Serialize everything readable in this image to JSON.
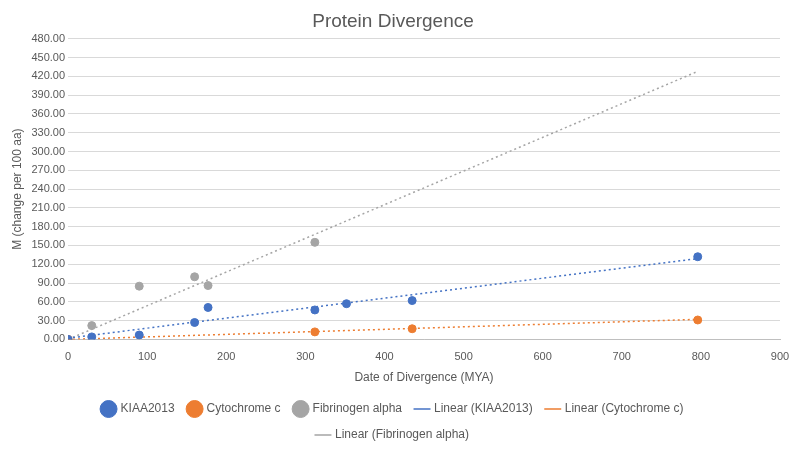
{
  "chart_data": {
    "type": "scatter",
    "title": "Protein Divergence",
    "x_label": "Date of Divergence (MYA)",
    "y_label": "M (change per 100 aa)",
    "xlim": [
      0,
      900
    ],
    "xticks": [
      0,
      100,
      200,
      300,
      400,
      500,
      600,
      700,
      800,
      900
    ],
    "ylim": [
      0,
      480
    ],
    "yticks": [
      {
        "value": 0,
        "label": "0.00"
      },
      {
        "value": 30,
        "label": "30.00"
      },
      {
        "value": 60,
        "label": "60.00"
      },
      {
        "value": 90,
        "label": "90.00"
      },
      {
        "value": 120,
        "label": "120.00"
      },
      {
        "value": 150,
        "label": "150.00"
      },
      {
        "value": 180,
        "label": "180.00"
      },
      {
        "value": 210,
        "label": "210.00"
      },
      {
        "value": 240,
        "label": "240.00"
      },
      {
        "value": 270,
        "label": "270.00"
      },
      {
        "value": 300,
        "label": "300.00"
      },
      {
        "value": 330,
        "label": "330.00"
      },
      {
        "value": 360,
        "label": "360.00"
      },
      {
        "value": 390,
        "label": "390.00"
      },
      {
        "value": 420,
        "label": "420.00"
      },
      {
        "value": 450,
        "label": "450.00"
      },
      {
        "value": 480,
        "label": "480.00"
      }
    ],
    "grid": true,
    "legend": "bottom",
    "series": [
      {
        "name": "KIAA2013",
        "color": "#4472c4",
        "type": "scatter",
        "marker": "circle",
        "x": [
          0,
          30,
          90,
          160,
          177,
          312,
          352,
          435,
          796
        ],
        "values": [
          0,
          4,
          7,
          27,
          51,
          47,
          57,
          62,
          132
        ]
      },
      {
        "name": "Cytochrome c",
        "color": "#ed7d31",
        "type": "scatter",
        "marker": "circle",
        "x": [
          0,
          312,
          435,
          796
        ],
        "values": [
          0,
          12,
          17,
          31
        ]
      },
      {
        "name": "Fibrinogen alpha",
        "color": "#a5a5a5",
        "type": "scatter",
        "marker": "circle",
        "x": [
          0,
          30,
          90,
          160,
          177,
          312
        ],
        "values": [
          0,
          22,
          85,
          100,
          86,
          155
        ]
      },
      {
        "name": "Linear (KIAA2013)",
        "color": "#4472c4",
        "type": "line",
        "marker": "none",
        "line_style": "dotted",
        "x": [
          0,
          796
        ],
        "values": [
          2,
          129
        ]
      },
      {
        "name": "Linear (Cytochrome c)",
        "color": "#ed7d31",
        "type": "line",
        "marker": "none",
        "line_style": "dotted",
        "x": [
          0,
          796
        ],
        "values": [
          0,
          32
        ]
      },
      {
        "name": "Linear (Fibrinogen alpha)",
        "color": "#a5a5a5",
        "type": "line",
        "marker": "none",
        "line_style": "dotted",
        "x": [
          0,
          796
        ],
        "values": [
          0,
          428
        ]
      }
    ]
  }
}
